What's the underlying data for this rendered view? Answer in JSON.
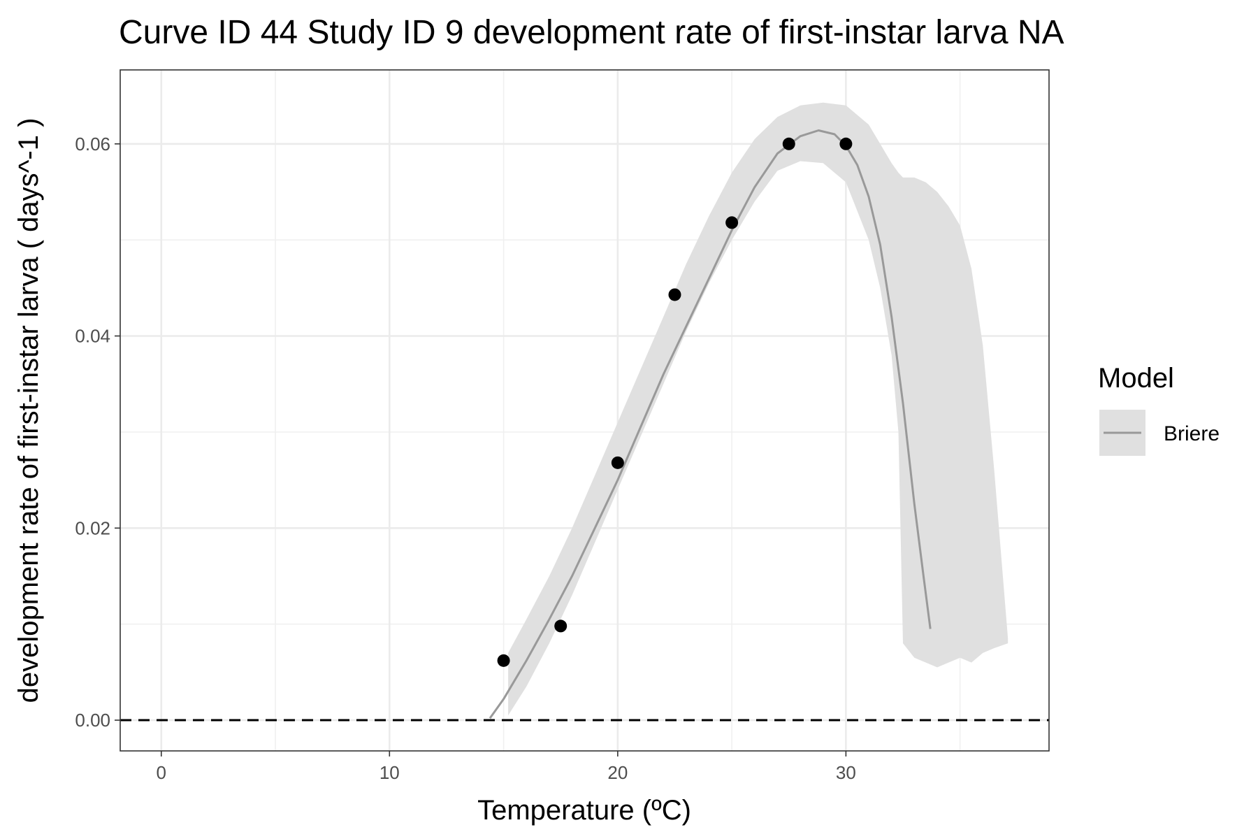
{
  "chart_data": {
    "type": "line",
    "title": "Curve ID 44 Study ID 9 development rate of first-instar larva NA",
    "xlabel": "Temperature (ºC)",
    "ylabel": "development rate of first-instar larva ( days^-1 )",
    "xlim": [
      -1.8,
      38.9
    ],
    "ylim": [
      -0.0032,
      0.0677
    ],
    "x_ticks": [
      0,
      10,
      20,
      30
    ],
    "x_tick_labels": [
      "0",
      "10",
      "20",
      "30"
    ],
    "y_ticks": [
      0.0,
      0.02,
      0.04,
      0.06
    ],
    "y_tick_labels": [
      "0.00",
      "0.02",
      "0.04",
      "0.06"
    ],
    "grid": true,
    "reference_line": {
      "y": 0,
      "style": "dashed",
      "color": "#000000"
    },
    "points": {
      "x": [
        15,
        17.5,
        20,
        22.5,
        25,
        27.5,
        30
      ],
      "y": [
        0.0062,
        0.0098,
        0.0268,
        0.0443,
        0.0518,
        0.06,
        0.06
      ],
      "color": "#000000"
    },
    "series": [
      {
        "name": "Briere",
        "type": "line",
        "color": "#999999",
        "x": [
          14.4,
          15,
          16,
          17,
          18,
          19,
          20,
          21,
          22,
          23,
          24,
          25,
          26,
          27,
          28,
          28.8,
          29.5,
          30,
          30.5,
          31,
          31.5,
          32,
          32.5,
          33,
          33.4,
          33.7
        ],
        "y": [
          0.0002,
          0.0022,
          0.0062,
          0.0105,
          0.015,
          0.02,
          0.025,
          0.0305,
          0.036,
          0.041,
          0.046,
          0.051,
          0.0555,
          0.059,
          0.0608,
          0.0614,
          0.061,
          0.0598,
          0.0578,
          0.0545,
          0.0495,
          0.042,
          0.033,
          0.0225,
          0.015,
          0.0095
        ]
      }
    ],
    "ribbon": {
      "name": "Briere",
      "color": "#e0e0e0",
      "x": [
        15.2,
        16,
        17,
        18,
        19,
        20,
        21,
        22,
        23,
        24,
        25,
        26,
        27,
        28,
        29,
        30,
        31,
        31.5,
        32,
        32.3,
        32.5,
        33,
        33.5,
        34,
        34.5,
        35,
        35.5,
        36,
        36.5,
        37.1
      ],
      "upper": [
        0.007,
        0.0105,
        0.015,
        0.02,
        0.0255,
        0.031,
        0.0365,
        0.042,
        0.0475,
        0.0525,
        0.057,
        0.0605,
        0.0628,
        0.064,
        0.0643,
        0.064,
        0.062,
        0.06,
        0.058,
        0.057,
        0.0565,
        0.0565,
        0.056,
        0.055,
        0.0535,
        0.0515,
        0.047,
        0.039,
        0.026,
        0.0085
      ],
      "lower": [
        0.0005,
        0.0035,
        0.008,
        0.013,
        0.0185,
        0.024,
        0.0295,
        0.035,
        0.0405,
        0.0455,
        0.05,
        0.054,
        0.0572,
        0.0582,
        0.058,
        0.056,
        0.05,
        0.045,
        0.038,
        0.03,
        0.008,
        0.0065,
        0.006,
        0.0055,
        0.006,
        0.0065,
        0.006,
        0.007,
        0.0075,
        0.008
      ]
    },
    "legend": {
      "title": "Model",
      "placement": "right",
      "entries": [
        {
          "label": "Briere",
          "color": "#999999",
          "fill": "#e0e0e0"
        }
      ]
    }
  }
}
